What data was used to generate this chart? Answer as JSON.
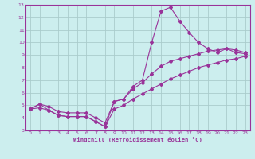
{
  "xlabel": "Windchill (Refroidissement éolien,°C)",
  "x": [
    0,
    1,
    2,
    3,
    4,
    5,
    6,
    7,
    8,
    9,
    10,
    11,
    12,
    13,
    14,
    15,
    16,
    17,
    18,
    19,
    20,
    21,
    22,
    23
  ],
  "line_main": [
    4.7,
    5.1,
    4.6,
    4.2,
    4.1,
    4.1,
    4.1,
    3.7,
    3.3,
    5.3,
    5.5,
    6.5,
    7.0,
    10.0,
    12.5,
    12.8,
    11.7,
    10.8,
    10.0,
    9.5,
    9.2,
    9.5,
    9.2,
    9.1
  ],
  "line_lower": [
    4.7,
    4.8,
    4.6,
    4.2,
    4.1,
    4.1,
    4.1,
    3.7,
    3.3,
    4.7,
    5.0,
    5.5,
    5.9,
    6.3,
    6.7,
    7.1,
    7.4,
    7.7,
    8.0,
    8.2,
    8.4,
    8.6,
    8.7,
    8.9
  ],
  "line_upper": [
    4.7,
    5.1,
    4.9,
    4.5,
    4.4,
    4.4,
    4.4,
    4.0,
    3.6,
    5.3,
    5.5,
    6.3,
    6.8,
    7.5,
    8.1,
    8.5,
    8.7,
    8.9,
    9.1,
    9.3,
    9.4,
    9.5,
    9.4,
    9.2
  ],
  "color": "#993399",
  "bg_color": "#cceeee",
  "grid_color": "#aacccc",
  "ylim": [
    3,
    13
  ],
  "xlim": [
    -0.5,
    23.5
  ],
  "yticks": [
    3,
    4,
    5,
    6,
    7,
    8,
    9,
    10,
    11,
    12,
    13
  ],
  "xticks": [
    0,
    1,
    2,
    3,
    4,
    5,
    6,
    7,
    8,
    9,
    10,
    11,
    12,
    13,
    14,
    15,
    16,
    17,
    18,
    19,
    20,
    21,
    22,
    23
  ]
}
